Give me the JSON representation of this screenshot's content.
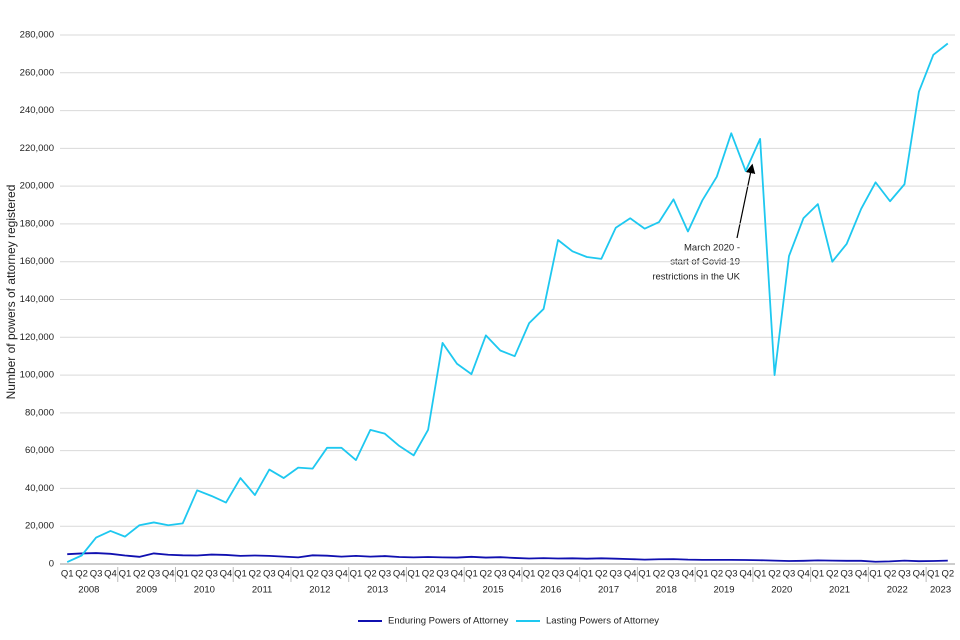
{
  "chart_data": {
    "type": "line",
    "y_label": "Number of powers of attorney registered",
    "categories": [
      "Q1",
      "Q2",
      "Q3",
      "Q4",
      "Q1",
      "Q2",
      "Q3",
      "Q4",
      "Q1",
      "Q2",
      "Q3",
      "Q4",
      "Q1",
      "Q2",
      "Q3",
      "Q4",
      "Q1",
      "Q2",
      "Q3",
      "Q4",
      "Q1",
      "Q2",
      "Q3",
      "Q4",
      "Q1",
      "Q2",
      "Q3",
      "Q4",
      "Q1",
      "Q2",
      "Q3",
      "Q4",
      "Q1",
      "Q2",
      "Q3",
      "Q4",
      "Q1",
      "Q2",
      "Q3",
      "Q4",
      "Q1",
      "Q2",
      "Q3",
      "Q4",
      "Q1",
      "Q2",
      "Q3",
      "Q4",
      "Q1",
      "Q2",
      "Q3",
      "Q4",
      "Q1",
      "Q2",
      "Q3",
      "Q4",
      "Q1",
      "Q2",
      "Q3",
      "Q4",
      "Q1",
      "Q2"
    ],
    "years": [
      "2008",
      "2009",
      "2010",
      "2011",
      "2012",
      "2013",
      "2014",
      "2015",
      "2016",
      "2017",
      "2018",
      "2019",
      "2020",
      "2021",
      "2022",
      "2023"
    ],
    "series": [
      {
        "name": "Enduring Powers of Attorney",
        "color": "#1010b0",
        "values": [
          5200,
          5600,
          5800,
          5400,
          4500,
          3800,
          5600,
          4900,
          4600,
          4500,
          5000,
          4800,
          4300,
          4500,
          4300,
          3900,
          3500,
          4600,
          4400,
          3900,
          4300,
          3900,
          4200,
          3700,
          3500,
          3700,
          3500,
          3400,
          3800,
          3400,
          3600,
          3200,
          2900,
          3100,
          2900,
          3000,
          2800,
          3000,
          2800,
          2600,
          2300,
          2500,
          2600,
          2300,
          2200,
          2200,
          2200,
          2100,
          2000,
          1800,
          1600,
          1700,
          1900,
          1800,
          1700,
          1700,
          1200,
          1400,
          1800,
          1500,
          1600,
          1800
        ]
      },
      {
        "name": "Lasting Powers of Attorney",
        "color": "#1ec8f0",
        "values": [
          1000,
          4500,
          14000,
          17500,
          14500,
          20500,
          22000,
          20500,
          21500,
          39000,
          36000,
          32500,
          45500,
          36500,
          50000,
          45500,
          51000,
          50500,
          61500,
          61500,
          55000,
          71000,
          69000,
          62500,
          57500,
          71000,
          117000,
          106000,
          100500,
          121000,
          113000,
          110000,
          127500,
          135000,
          171500,
          165500,
          162500,
          161500,
          178000,
          183000,
          177500,
          181000,
          193000,
          176000,
          192500,
          205000,
          228000,
          208000,
          225000,
          100000,
          163000,
          183000,
          190500,
          160000,
          169500,
          188000,
          202000,
          192000,
          201000,
          250000,
          269500,
          275500
        ]
      }
    ],
    "annotation": [
      "March 2020 -",
      "start of Covid-19",
      "restrictions in the UK"
    ],
    "ylim": [
      0,
      280000
    ],
    "yticks": [
      0,
      {
        "value": 20000,
        "label": "20,000"
      },
      {
        "value": 40000,
        "label": "40,000"
      },
      {
        "value": 60000,
        "label": "60,000"
      },
      {
        "value": 80000,
        "label": "80,000"
      },
      {
        "value": 100000,
        "label": "100,000"
      },
      {
        "value": 120000,
        "label": "120,000"
      },
      {
        "value": 140000,
        "label": "140,000"
      },
      {
        "value": 160000,
        "label": "160,000"
      },
      {
        "value": 180000,
        "label": "180,000"
      },
      {
        "value": 200000,
        "label": "200,000"
      },
      {
        "value": 220000,
        "label": "220,000"
      },
      {
        "value": 240000,
        "label": "240,000"
      },
      {
        "value": 260000,
        "label": "260,000"
      },
      {
        "value": 280000,
        "label": "280,000"
      }
    ],
    "grid": true
  }
}
